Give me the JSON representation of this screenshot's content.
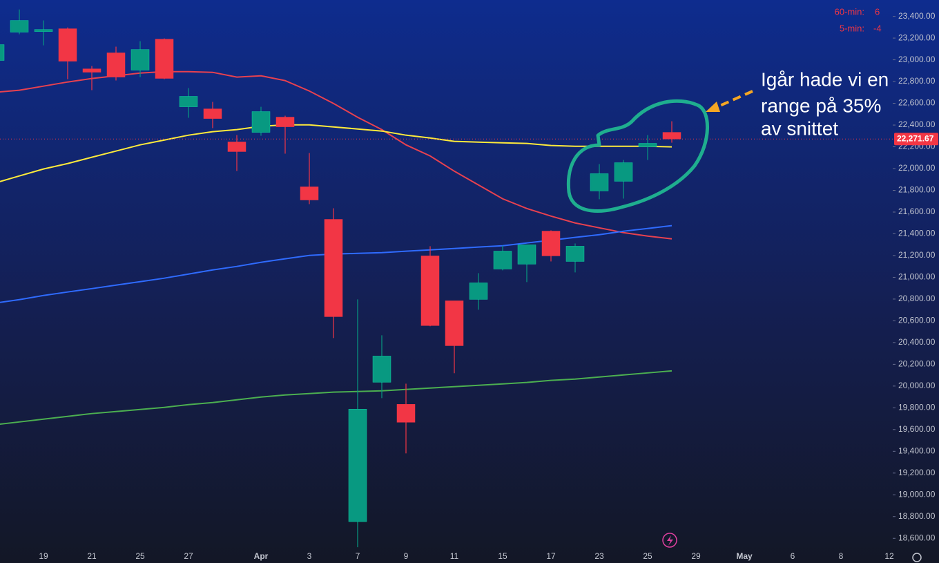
{
  "chart_data": {
    "type": "candlestick",
    "categories": [
      null,
      null,
      "19",
      null,
      "21",
      null,
      "25",
      null,
      "27",
      null,
      null,
      "Apr",
      null,
      "3",
      null,
      "7",
      null,
      "9",
      null,
      "11",
      null,
      "15",
      null,
      "17",
      null,
      "23",
      null,
      "25",
      null,
      "29",
      null,
      "May",
      null,
      "6",
      null,
      "8",
      null,
      "12"
    ],
    "open": [
      22994,
      23254,
      23260,
      23286,
      22917,
      23064,
      22905,
      23190,
      22568,
      22549,
      22245,
      22333,
      22473,
      21832,
      21533,
      18753,
      20035,
      19832,
      21197,
      20784,
      20797,
      21076,
      21121,
      21425,
      21146,
      21794,
      21883,
      22200,
      22333,
      null,
      null,
      null,
      null,
      null,
      null,
      null,
      null,
      null
    ],
    "high": [
      23180,
      23463,
      23362,
      23298,
      22943,
      23121,
      23171,
      23197,
      22740,
      22613,
      22308,
      22568,
      22486,
      22143,
      21635,
      20797,
      20467,
      20022,
      21286,
      20784,
      21038,
      21292,
      21299,
      21432,
      21311,
      22041,
      22079,
      22308,
      22435,
      null,
      null,
      null,
      null,
      null,
      null,
      null,
      null,
      null
    ],
    "low": [
      22960,
      23235,
      23133,
      22822,
      22721,
      22810,
      22841,
      22822,
      22467,
      22372,
      21978,
      22302,
      22137,
      21673,
      20441,
      18518,
      19889,
      19381,
      20550,
      20118,
      20702,
      21064,
      20956,
      21146,
      21045,
      21718,
      21724,
      22079,
      22238,
      null,
      null,
      null,
      null,
      null,
      null,
      null,
      null,
      null
    ],
    "close": [
      23140,
      23362,
      23279,
      22987,
      22886,
      22841,
      23095,
      22829,
      22664,
      22460,
      22156,
      22524,
      22384,
      21711,
      20638,
      19788,
      20276,
      19667,
      20556,
      20371,
      20949,
      21241,
      21299,
      21197,
      21286,
      21953,
      22054,
      22232,
      22271.67,
      null,
      null,
      null,
      null,
      null,
      null,
      null,
      null,
      null
    ],
    "up_color": "#089981",
    "down_color": "#f23645",
    "lines": [
      {
        "color": "#e8414f",
        "values": [
          22701,
          22720,
          22758,
          22796,
          22828,
          22853,
          22878,
          22891,
          22891,
          22885,
          22841,
          22853,
          22809,
          22713,
          22599,
          22472,
          22358,
          22218,
          22116,
          21976,
          21849,
          21722,
          21633,
          21563,
          21500,
          21455,
          21411,
          21379,
          21354,
          null,
          null,
          null,
          null,
          null,
          null,
          null,
          null,
          null
        ]
      },
      {
        "color": "#ffeb3b",
        "values": [
          21868,
          21932,
          21996,
          22046,
          22104,
          22161,
          22218,
          22262,
          22307,
          22339,
          22358,
          22389,
          22402,
          22402,
          22383,
          22364,
          22345,
          22307,
          22281,
          22250,
          22243,
          22237,
          22231,
          22212,
          22205,
          22205,
          22205,
          22205,
          22199,
          null,
          null,
          null,
          null,
          null,
          null,
          null,
          null,
          null
        ]
      },
      {
        "color": "#2f6bff",
        "values": [
          20763,
          20795,
          20833,
          20865,
          20896,
          20928,
          20960,
          20992,
          21030,
          21068,
          21100,
          21138,
          21170,
          21201,
          21214,
          21220,
          21227,
          21240,
          21252,
          21265,
          21278,
          21290,
          21316,
          21341,
          21367,
          21392,
          21424,
          21449,
          21475,
          null,
          null,
          null,
          null,
          null,
          null,
          null,
          null,
          null
        ]
      },
      {
        "color": "#4caf50",
        "values": [
          19645,
          19670,
          19696,
          19721,
          19747,
          19766,
          19785,
          19804,
          19829,
          19848,
          19874,
          19899,
          19918,
          19931,
          19944,
          19950,
          19956,
          19969,
          19982,
          19994,
          20007,
          20020,
          20033,
          20052,
          20064,
          20083,
          20102,
          20121,
          20140,
          null,
          null,
          null,
          null,
          null,
          null,
          null,
          null,
          null
        ]
      }
    ],
    "ylim": [
      18500,
      23550
    ],
    "yticks": [
      {
        "value": 18600,
        "label": "18,600.00"
      },
      {
        "value": 18800,
        "label": "18,800.00"
      },
      {
        "value": 19000,
        "label": "19,000.00"
      },
      {
        "value": 19200,
        "label": "19,200.00"
      },
      {
        "value": 19400,
        "label": "19,400.00"
      },
      {
        "value": 19600,
        "label": "19,600.00"
      },
      {
        "value": 19800,
        "label": "19,800.00"
      },
      {
        "value": 20000,
        "label": "20,000.00"
      },
      {
        "value": 20200,
        "label": "20,200.00"
      },
      {
        "value": 20400,
        "label": "20,400.00"
      },
      {
        "value": 20600,
        "label": "20,600.00"
      },
      {
        "value": 20800,
        "label": "20,800.00"
      },
      {
        "value": 21000,
        "label": "21,000.00"
      },
      {
        "value": 21200,
        "label": "21,200.00"
      },
      {
        "value": 21400,
        "label": "21,400.00"
      },
      {
        "value": 21600,
        "label": "21,600.00"
      },
      {
        "value": 21800,
        "label": "21,800.00"
      },
      {
        "value": 22000,
        "label": "22,000.00"
      },
      {
        "value": 22200,
        "label": "22,200.00"
      },
      {
        "value": 22400,
        "label": "22,400.00"
      },
      {
        "value": 22600,
        "label": "22,600.00"
      },
      {
        "value": 22800,
        "label": "22,800.00"
      },
      {
        "value": 23000,
        "label": "23,000.00"
      },
      {
        "value": 23200,
        "label": "23,200.00"
      },
      {
        "value": 23400,
        "label": "23,400.00"
      }
    ],
    "last_price": {
      "value": 22271.67,
      "label": "22,271.67"
    },
    "legend": [
      {
        "label": "60-min:",
        "value": "6"
      },
      {
        "label": "5-min:",
        "value": "-4"
      }
    ],
    "annotation": [
      "Igår hade vi en",
      "range på 35%",
      "av snittet"
    ]
  }
}
